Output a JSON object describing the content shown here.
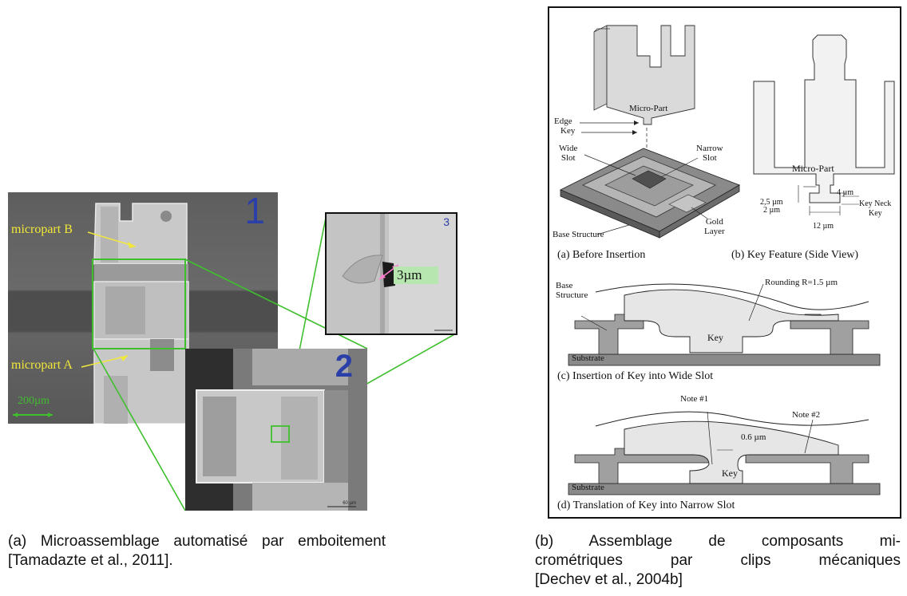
{
  "figure_a": {
    "micrograph_1": {
      "panel_number": "1",
      "label_b": "micropart B",
      "label_a": "micropart A",
      "scale_label": "200µm"
    },
    "micrograph_2": {
      "panel_number": "2",
      "scale_label": "60 µm"
    },
    "micrograph_3": {
      "panel_number": "3",
      "gap_label": "3µm"
    },
    "caption_line1": "(a) Microassemblage automatisé par emboitement",
    "caption_line2": "[Tamadazte et al., 2011]."
  },
  "figure_b": {
    "panel_a": {
      "part_label": "Micro-Part",
      "edge": "Edge",
      "key": "Key",
      "wide_slot": "Wide\nSlot",
      "narrow_slot": "Narrow\nSlot",
      "base_structure": "Base Structure",
      "gold_layer": "Gold\nLayer",
      "caption": "(a) Before Insertion"
    },
    "panel_b": {
      "part_label": "Micro-Part",
      "dim_4": "4 µm",
      "dim_25": "2,5 µm",
      "dim_2": "2 µm",
      "dim_12": "12 µm",
      "key_neck": "Key Neck",
      "key": "Key",
      "caption": "(b) Key Feature (Side View)"
    },
    "panel_c": {
      "base": "Base\nStructure",
      "rounding": "Rounding R=1.5 µm",
      "key": "Key",
      "substrate": "Substrate",
      "caption": "(c) Insertion of Key into Wide Slot"
    },
    "panel_d": {
      "note1": "Note #1",
      "note2": "Note #2",
      "gap": "0.6 µm",
      "key": "Key",
      "substrate": "Substrate",
      "caption": "(d) Translation of Key into Narrow Slot"
    },
    "caption_line1": "(b)    Assemblage    de    composants    mi-",
    "caption_line2": "crométriques     par     clips     mécaniques",
    "caption_line3": "[Dechev et al., 2004b]"
  },
  "colors": {
    "highlight_box": "#3fbf2e",
    "panel_number": "#2b3fa8",
    "annotation_yellow": "#f2e83a",
    "gap_label_bg": "#b8e6b0",
    "gap_arrow": "#ff7fd0"
  }
}
